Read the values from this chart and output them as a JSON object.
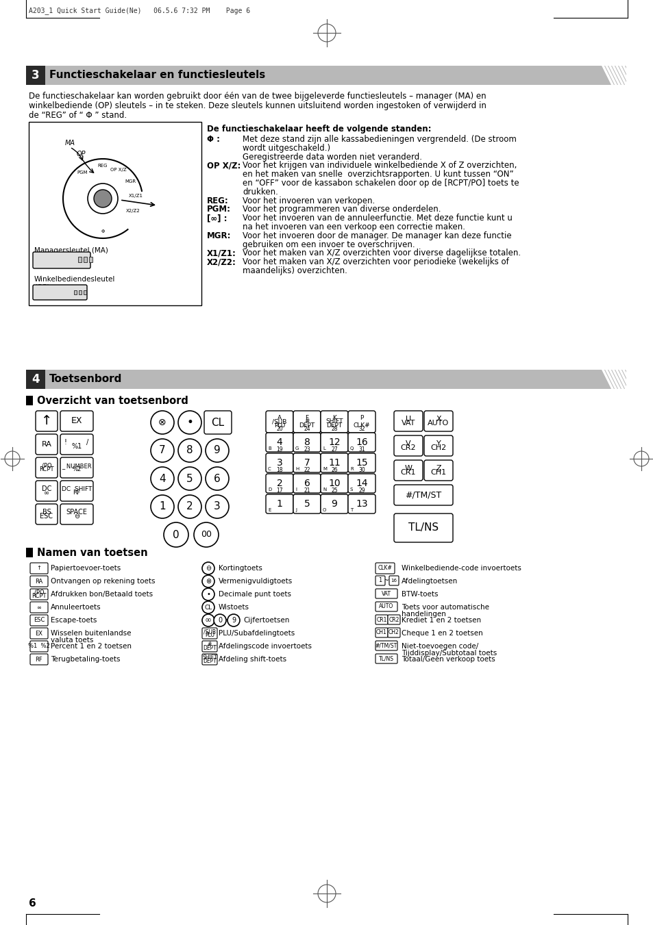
{
  "page_header": "A203_1 Quick Start Guide(Ne)   06.5.6 7:32 PM    Page 6",
  "section3_num": "3",
  "section3_title": "Functieschakelaar en functiesleutels",
  "body_line1": "De functieschakelaar kan worden gebruikt door één van de twee bijgeleverde functiesleutels – manager (MA) en",
  "body_line2": "winkelbediende (OP) sleutels – in te steken. Deze sleutels kunnen uitsluitend worden ingestoken of verwijderd in",
  "body_line3": "de “REG” of “ Φ ” stand.",
  "right_intro": "De functieschakelaar heeft de volgende standen:",
  "section4_num": "4",
  "section4_title": "Toetsenbord",
  "sub1": "Overzicht van toetsenbord",
  "sub2": "Namen van toetsen",
  "page_num": "6",
  "gray_header": "#b8b8b8",
  "dark_box": "#2a2a2a",
  "white": "#ffffff",
  "black": "#000000",
  "bg": "#ffffff"
}
